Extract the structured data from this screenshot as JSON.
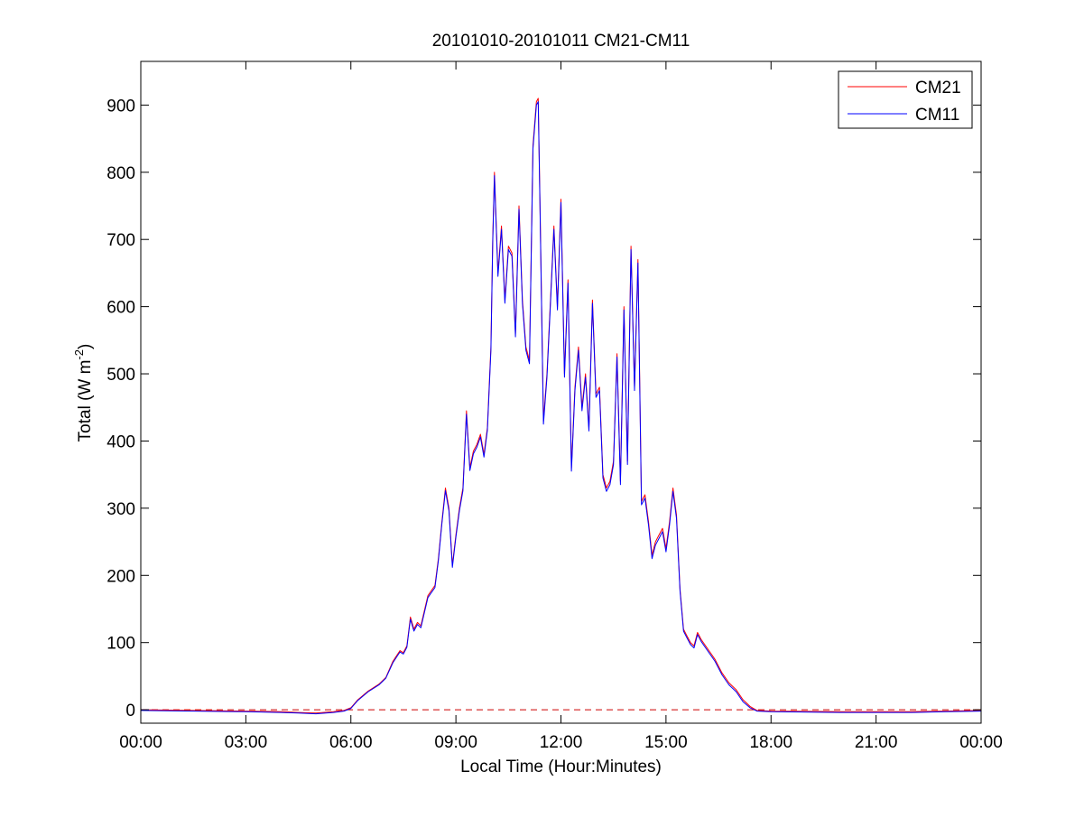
{
  "chart_data": {
    "type": "line",
    "title": "20101010-20101011 CM21-CM11",
    "xlabel": "Local Time (Hour:Minutes)",
    "ylabel_main": "Total (W m",
    "ylabel_exp": "-2",
    "ylabel_close": ")",
    "x_unit": "hours",
    "xlim": [
      0,
      24
    ],
    "ylim": [
      -20,
      965
    ],
    "x_ticks": [
      0,
      3,
      6,
      9,
      12,
      15,
      18,
      21,
      24
    ],
    "x_tick_labels": [
      "00:00",
      "03:00",
      "06:00",
      "09:00",
      "12:00",
      "15:00",
      "18:00",
      "21:00",
      "00:00"
    ],
    "y_ticks": [
      0,
      100,
      200,
      300,
      400,
      500,
      600,
      700,
      800,
      900
    ],
    "y_tick_labels": [
      "0",
      "100",
      "200",
      "300",
      "400",
      "500",
      "600",
      "700",
      "800",
      "900"
    ],
    "grid": false,
    "legend_position": "top-right",
    "reference_line": {
      "y": 0,
      "style": "dashed",
      "color": "#cc0000"
    },
    "series": [
      {
        "name": "CM21",
        "color": "#ff0000",
        "x": [
          0,
          3,
          4,
          4.5,
          5,
          5.5,
          5.8,
          6.0,
          6.2,
          6.5,
          6.8,
          7.0,
          7.2,
          7.4,
          7.5,
          7.6,
          7.7,
          7.8,
          7.9,
          8.0,
          8.2,
          8.4,
          8.5,
          8.6,
          8.7,
          8.8,
          8.9,
          9.0,
          9.1,
          9.2,
          9.3,
          9.4,
          9.5,
          9.6,
          9.7,
          9.8,
          9.9,
          10.0,
          10.05,
          10.1,
          10.2,
          10.3,
          10.4,
          10.5,
          10.6,
          10.7,
          10.8,
          10.9,
          11.0,
          11.1,
          11.2,
          11.3,
          11.35,
          11.4,
          11.5,
          11.6,
          11.7,
          11.8,
          11.9,
          12.0,
          12.1,
          12.2,
          12.3,
          12.4,
          12.5,
          12.6,
          12.7,
          12.8,
          12.9,
          13.0,
          13.1,
          13.2,
          13.3,
          13.4,
          13.5,
          13.6,
          13.7,
          13.8,
          13.9,
          14.0,
          14.1,
          14.2,
          14.3,
          14.4,
          14.5,
          14.6,
          14.7,
          14.8,
          14.9,
          15.0,
          15.1,
          15.2,
          15.3,
          15.4,
          15.5,
          15.6,
          15.7,
          15.8,
          15.9,
          16.0,
          16.2,
          16.4,
          16.6,
          16.8,
          17.0,
          17.2,
          17.4,
          17.6,
          18,
          20,
          22,
          23,
          24
        ],
        "y": [
          0,
          -2,
          -3,
          -4,
          -5,
          -3,
          -1,
          3,
          15,
          28,
          38,
          48,
          72,
          88,
          85,
          95,
          138,
          120,
          130,
          125,
          170,
          185,
          225,
          280,
          330,
          300,
          215,
          260,
          300,
          330,
          445,
          360,
          385,
          395,
          410,
          380,
          420,
          540,
          700,
          800,
          650,
          720,
          610,
          690,
          680,
          560,
          750,
          610,
          540,
          520,
          840,
          905,
          910,
          760,
          430,
          500,
          610,
          720,
          600,
          760,
          500,
          640,
          360,
          480,
          540,
          450,
          500,
          420,
          610,
          470,
          480,
          350,
          330,
          340,
          370,
          530,
          340,
          600,
          370,
          690,
          480,
          670,
          310,
          320,
          280,
          230,
          250,
          260,
          270,
          240,
          280,
          330,
          290,
          180,
          120,
          110,
          100,
          95,
          115,
          105,
          90,
          75,
          55,
          40,
          30,
          15,
          5,
          -1,
          -2,
          -3,
          -3,
          -2,
          -1
        ]
      },
      {
        "name": "CM11",
        "color": "#0000ff",
        "x": [
          0,
          3,
          4,
          4.5,
          5,
          5.5,
          5.8,
          6.0,
          6.2,
          6.5,
          6.8,
          7.0,
          7.2,
          7.4,
          7.5,
          7.6,
          7.7,
          7.8,
          7.9,
          8.0,
          8.2,
          8.4,
          8.5,
          8.6,
          8.7,
          8.8,
          8.9,
          9.0,
          9.1,
          9.2,
          9.3,
          9.4,
          9.5,
          9.6,
          9.7,
          9.8,
          9.9,
          10.0,
          10.05,
          10.1,
          10.2,
          10.3,
          10.4,
          10.5,
          10.6,
          10.7,
          10.8,
          10.9,
          11.0,
          11.1,
          11.2,
          11.3,
          11.35,
          11.4,
          11.5,
          11.6,
          11.7,
          11.8,
          11.9,
          12.0,
          12.1,
          12.2,
          12.3,
          12.4,
          12.5,
          12.6,
          12.7,
          12.8,
          12.9,
          13.0,
          13.1,
          13.2,
          13.3,
          13.4,
          13.5,
          13.6,
          13.7,
          13.8,
          13.9,
          14.0,
          14.1,
          14.2,
          14.3,
          14.4,
          14.5,
          14.6,
          14.7,
          14.8,
          14.9,
          15.0,
          15.1,
          15.2,
          15.3,
          15.4,
          15.5,
          15.6,
          15.7,
          15.8,
          15.9,
          16.0,
          16.2,
          16.4,
          16.6,
          16.8,
          17.0,
          17.2,
          17.4,
          17.6,
          18,
          20,
          22,
          23,
          24
        ],
        "y": [
          -1,
          -3,
          -4,
          -5,
          -6,
          -4,
          -2,
          2,
          14,
          27,
          37,
          47,
          70,
          86,
          83,
          93,
          135,
          117,
          127,
          122,
          167,
          182,
          222,
          277,
          326,
          296,
          212,
          257,
          296,
          326,
          440,
          356,
          381,
          391,
          406,
          376,
          416,
          535,
          695,
          795,
          645,
          715,
          605,
          685,
          675,
          555,
          745,
          605,
          535,
          515,
          835,
          900,
          905,
          755,
          425,
          495,
          605,
          715,
          595,
          755,
          495,
          635,
          355,
          475,
          535,
          445,
          495,
          415,
          605,
          465,
          475,
          345,
          325,
          335,
          365,
          525,
          335,
          595,
          365,
          685,
          475,
          665,
          305,
          315,
          275,
          225,
          245,
          255,
          265,
          235,
          275,
          325,
          285,
          177,
          117,
          107,
          97,
          92,
          112,
          102,
          87,
          72,
          52,
          37,
          27,
          12,
          3,
          -2,
          -3,
          -4,
          -4,
          -3,
          -2
        ]
      }
    ]
  }
}
